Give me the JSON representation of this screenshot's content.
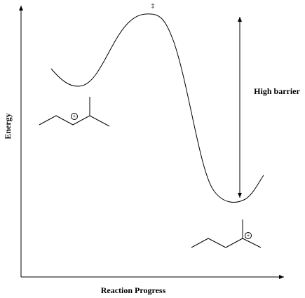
{
  "labels": {
    "y_axis": "Energy",
    "x_axis": "Reaction Progress",
    "barrier": "High barrier",
    "transition_state": "‡"
  },
  "charges": [
    "+",
    "+"
  ]
}
